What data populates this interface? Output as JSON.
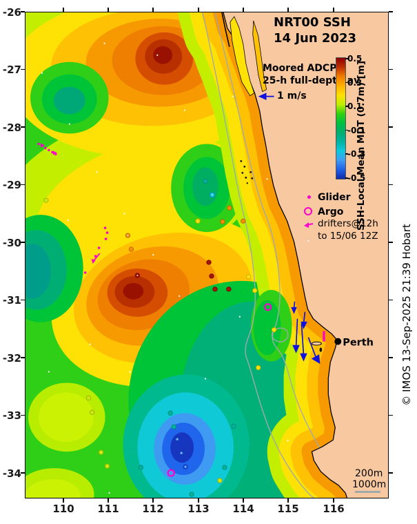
{
  "title": {
    "line1": "NRT00 SSH",
    "line2": "14 Jun 2023"
  },
  "legend": {
    "moored_adcp_line1": "Moored ADCP",
    "moored_adcp_line2": "25-h full-depth av",
    "adcp_scale_label": "1 m/s",
    "glider": "Glider",
    "argo": "Argo",
    "drifters_line1": "drifters@12h",
    "drifters_line2": "to 15/06 12Z"
  },
  "colorbar": {
    "label": "SSH-Local Mean MDT (0.7m) [m]",
    "tick_labels": [
      "0.5",
      "0.3",
      "0.1",
      "-0.1",
      "-0.3",
      "-0.5"
    ],
    "gradient_top_to_bottom": [
      "#8B0000",
      "#C03000",
      "#F07E00",
      "#FFB000",
      "#FFE000",
      "#BFEE00",
      "#30D010",
      "#00C040",
      "#00AE6E",
      "#00B3A0",
      "#10C8DC",
      "#3F9BF2",
      "#1F60E8",
      "#0E2AA8"
    ]
  },
  "axes": {
    "x_tick_labels": [
      "110",
      "111",
      "112",
      "113",
      "114",
      "115",
      "116"
    ],
    "y_tick_labels": [
      "-26",
      "-27",
      "-28",
      "-29",
      "-30",
      "-31",
      "-32",
      "-33",
      "-34"
    ]
  },
  "map_labels": {
    "city": "Perth",
    "isobath_200": "200m",
    "isobath_1000": "1000m"
  },
  "watermark": "© IMOS 13-Sep-2025 21:39 Hobart",
  "colors": {
    "land": "#F8C9A1",
    "coastline": "#000000",
    "bathymetry_gray": "#A0AAAA",
    "glider_argo_magenta": "#FF00CC",
    "adcp_arrow_blue": "#1212E0",
    "high_ssh_core": "#991100",
    "low_ssh_core": "#1736C0"
  },
  "chart_data": {
    "type": "heatmap",
    "title": "NRT00 SSH 14 Jun 2023",
    "xlabel": "",
    "ylabel": "",
    "x_ticks": [
      110,
      111,
      112,
      113,
      114,
      115,
      116
    ],
    "y_ticks": [
      -26,
      -27,
      -28,
      -29,
      -30,
      -31,
      -32,
      -33,
      -34
    ],
    "xlim": [
      109.14,
      117.22
    ],
    "ylim": [
      -34.44,
      -26.0
    ],
    "grid": false,
    "colorbar_label": "SSH-Local Mean MDT (0.7m) [m]",
    "colorbar_range": [
      -0.5,
      0.5
    ],
    "colorbar_ticks": [
      0.5,
      0.3,
      0.1,
      -0.1,
      -0.3,
      -0.5
    ],
    "features": [
      {
        "feature": "anticyclonic high (dark red core)",
        "lon": 112.2,
        "lat": -26.85,
        "ssh_m": 0.5
      },
      {
        "feature": "anticyclonic high (dark red core)",
        "lon": 111.6,
        "lat": -30.9,
        "ssh_m": 0.5
      },
      {
        "feature": "cyclonic low (green/sea-green rings)",
        "lon": 110.1,
        "lat": -27.5,
        "ssh_m": -0.15
      },
      {
        "feature": "cyclonic low (green rings)",
        "lon": 113.2,
        "lat": -29.0,
        "ssh_m": -0.15
      },
      {
        "feature": "teal low area",
        "lon": 109.6,
        "lat": -30.2,
        "ssh_m": -0.2
      },
      {
        "feature": "cyclonic low (navy core)",
        "lon": 112.7,
        "lat": -33.6,
        "ssh_m": -0.45
      },
      {
        "feature": "warm coastal band (orange) along coast",
        "lon": 115.3,
        "lat": -31.5,
        "ssh_m": 0.3
      }
    ],
    "overlays": [
      "Moored ADCP 25-h full-depth averaged current vectors (blue arrows) near 115E, -31.7 to -32.3",
      "Glider track (magenta dots) near 110.9E, -29.7 to -30.5",
      "Argo floats (magenta circles) at 114.4E -31.3 and 112.3E -34.3",
      "drifters@12h to 15/06 12Z (magenta arrows) near 109.4E -28.3",
      "200m and 1000m isobaths (gray lines)",
      "Perth city marker at 115.9E -32.0"
    ]
  }
}
